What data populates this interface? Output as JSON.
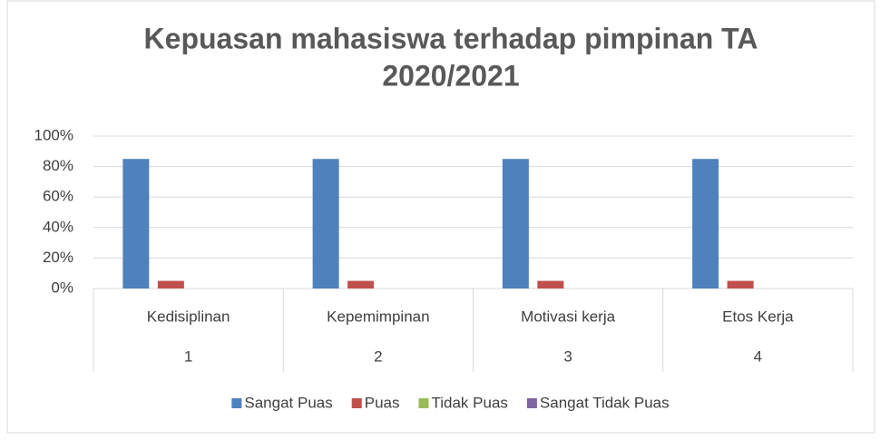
{
  "chart_data": {
    "type": "bar",
    "title": [
      "Kepuasan mahasiswa terhadap pimpinan TA",
      "2020/2021"
    ],
    "categories": [
      "Kedisiplinan",
      "Kepemimpinan",
      "Motivasi kerja",
      "Etos Kerja"
    ],
    "category_numbers": [
      "1",
      "2",
      "3",
      "4"
    ],
    "series": [
      {
        "name": "Sangat Puas",
        "color": "#4f81bd",
        "values": [
          85,
          85,
          85,
          85
        ]
      },
      {
        "name": "Puas",
        "color": "#c0504d",
        "values": [
          5,
          5,
          5,
          5
        ]
      },
      {
        "name": "Tidak Puas",
        "color": "#9bbb59",
        "values": [
          0,
          0,
          0,
          0
        ]
      },
      {
        "name": "Sangat Tidak Puas",
        "color": "#8064a2",
        "values": [
          0,
          0,
          0,
          0
        ]
      }
    ],
    "ylim": [
      0,
      100
    ],
    "yticks": [
      {
        "value": 0,
        "label": "0%"
      },
      {
        "value": 20,
        "label": "20%"
      },
      {
        "value": 40,
        "label": "40%"
      },
      {
        "value": 60,
        "label": "60%"
      },
      {
        "value": 80,
        "label": "80%"
      },
      {
        "value": 100,
        "label": "100%"
      }
    ],
    "grid": true,
    "legend": "bottom"
  }
}
